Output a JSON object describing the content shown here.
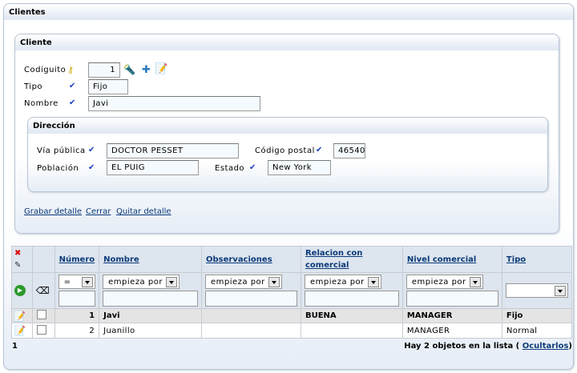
{
  "window": {
    "title": "Clientes"
  },
  "cliente": {
    "title": "Cliente",
    "codiguito": {
      "label": "Codiguito",
      "value": "1"
    },
    "tipo": {
      "label": "Tipo",
      "value": "Fijo"
    },
    "nombre": {
      "label": "Nombre",
      "value": "Javi"
    }
  },
  "direccion": {
    "title": "Dirección",
    "via": {
      "label": "Vía pública",
      "value": "DOCTOR PESSET"
    },
    "cp": {
      "label": "Código postal",
      "value": "46540"
    },
    "poblacion": {
      "label": "Población",
      "value": "EL PUIG"
    },
    "estado": {
      "label": "Estado",
      "value": "New York"
    }
  },
  "actions": {
    "grabar": "Grabar detalle",
    "cerrar": "Cerrar",
    "quitar": "Quitar detalle"
  },
  "table": {
    "headers": [
      "Número",
      "Nombre",
      "Observaciones",
      "Relacion con comercial",
      "Nivel comercial",
      "Tipo"
    ],
    "filters": [
      "=",
      "empieza por",
      "empieza por",
      "empieza por",
      "empieza por",
      ""
    ],
    "rows": [
      {
        "numero": "1",
        "nombre": "Javi",
        "observaciones": "",
        "relacion": "BUENA",
        "nivel": "MANAGER",
        "tipo": "Fijo"
      },
      {
        "numero": "2",
        "nombre": "Juanillo",
        "observaciones": "",
        "relacion": "",
        "nivel": "MANAGER",
        "tipo": "Normal"
      }
    ]
  },
  "footer": {
    "page": "1",
    "count_text": "Hay 2 objetos en la lista (",
    "hide_link": "Ocultarlos",
    "close_paren": ")"
  },
  "icons": {
    "key": "key-icon",
    "search": "flashlight-icon",
    "add": "plus-icon",
    "edit": "edit-icon",
    "required": "check-icon",
    "go": "play-icon",
    "clear": "eraser-icon"
  }
}
